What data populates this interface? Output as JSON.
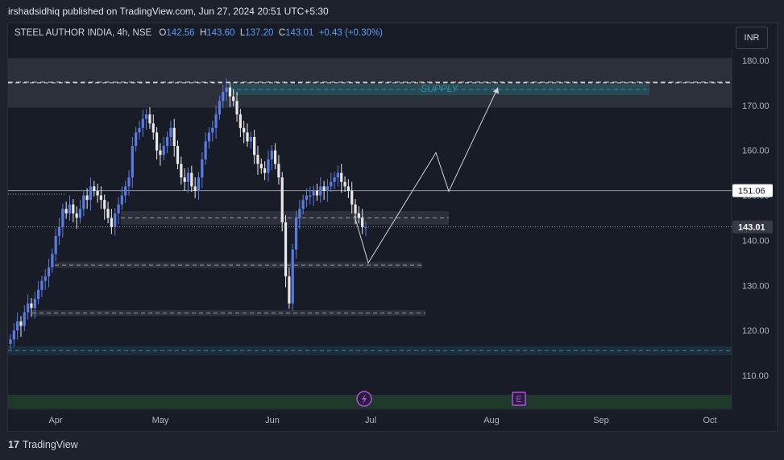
{
  "header": {
    "publisher_text": "irshadsidhiq published on TradingView.com, Jun 27, 2024 20:51 UTC+5:30"
  },
  "symbol": {
    "name": "STEEL AUTHOR INDIA, 4h, NSE",
    "o_label": "O",
    "o_value": "142.56",
    "h_label": "H",
    "h_value": "143.60",
    "l_label": "L",
    "l_value": "137.20",
    "c_label": "C",
    "c_value": "143.01",
    "change": "+0.43 (+0.30%)"
  },
  "currency_button": "INR",
  "footer": {
    "brand": "TradingView",
    "logo": "17"
  },
  "colors": {
    "up": "#5b7be0",
    "down": "#e8e8e8",
    "supply_text": "#2a8fa0",
    "accent": "#5b9cf6"
  },
  "chart_data": {
    "type": "candlestick",
    "y_axis": {
      "ticks": [
        "180.00",
        "170.00",
        "160.00",
        "150.00",
        "140.00",
        "130.00",
        "120.00",
        "110.00"
      ],
      "range": [
        102,
        182
      ]
    },
    "x_axis": {
      "ticks": [
        "Apr",
        "May",
        "Jun",
        "Jul",
        "Aug",
        "Sep",
        "Oct"
      ]
    },
    "price_labels": [
      {
        "value": 151.06,
        "text": "151.06",
        "style": "line"
      },
      {
        "value": 143.01,
        "text": "143.01",
        "style": "current"
      }
    ],
    "zones": [
      {
        "label": "SUPPLY",
        "top": 180.5,
        "bottom": 169.5
      },
      {
        "label": "",
        "top": 146.5,
        "bottom": 143.5
      },
      {
        "label": "",
        "top": 135.2,
        "bottom": 133.8
      },
      {
        "label": "",
        "top": 124.5,
        "bottom": 123.2
      },
      {
        "label": "",
        "top": 116.5,
        "bottom": 114.5
      }
    ],
    "projection_path": [
      145.5,
      135.0,
      159.5,
      150.9,
      174.0
    ],
    "events": [
      {
        "icon": "lightning-icon"
      },
      {
        "icon": "E"
      }
    ],
    "price_series": [
      118,
      120,
      122,
      121,
      124,
      126,
      125,
      127,
      129,
      131,
      132,
      134,
      137,
      141,
      143,
      147,
      146,
      148,
      146,
      145,
      147,
      150,
      149,
      152,
      151,
      150,
      149,
      147,
      145,
      143,
      146,
      148,
      150,
      152,
      154,
      161,
      164,
      165,
      167,
      168,
      166,
      164,
      160,
      159,
      161,
      163,
      165,
      161,
      157,
      154,
      153,
      155,
      152,
      151,
      154,
      158,
      162,
      164,
      165,
      168,
      171,
      173,
      174,
      172,
      171,
      168,
      165,
      164,
      162,
      163,
      159,
      157,
      156,
      155,
      158,
      160,
      157,
      154,
      144,
      132,
      126,
      138,
      145,
      147,
      149,
      150,
      150,
      151,
      150,
      152,
      151,
      152,
      153,
      154,
      155,
      153,
      152,
      151,
      148,
      146,
      145,
      143,
      143
    ]
  }
}
